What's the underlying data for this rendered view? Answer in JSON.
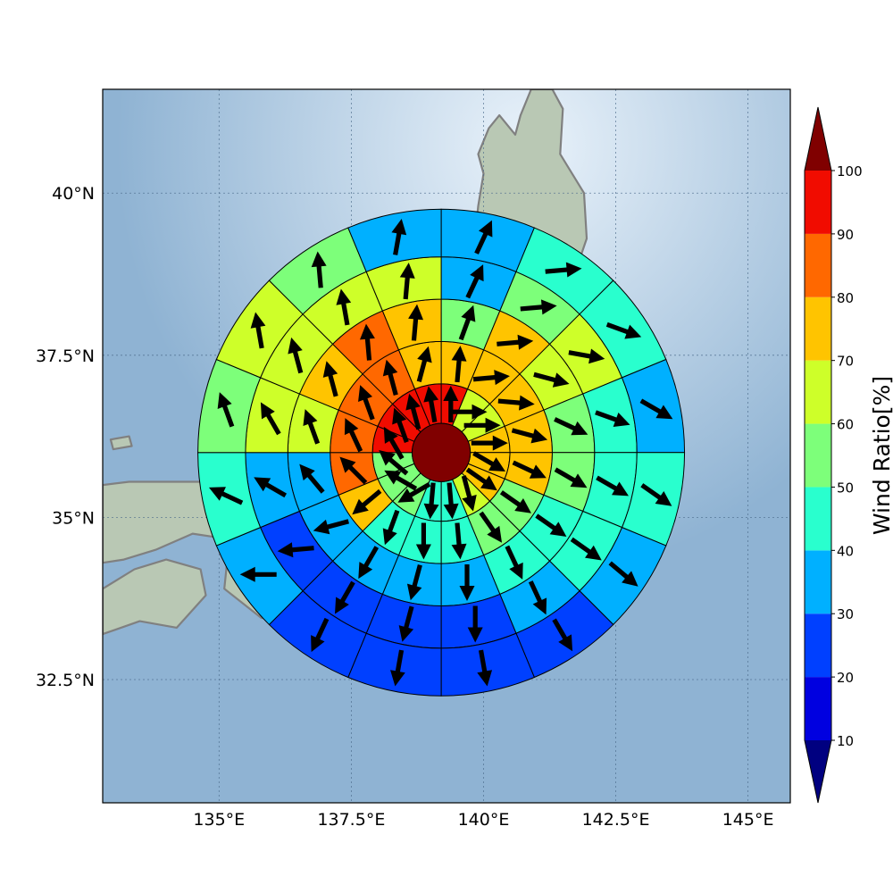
{
  "chart_data": {
    "type": "heatmap",
    "title": "",
    "map": {
      "lon_range": [
        132.8,
        145.8
      ],
      "lat_range": [
        30.6,
        41.6
      ],
      "xticks": [
        135,
        137.5,
        140,
        142.5,
        145
      ],
      "xtick_labels": [
        "135°E",
        "137.5°E",
        "140°E",
        "142.5°E",
        "145°E"
      ],
      "yticks": [
        32.5,
        35,
        37.5,
        40
      ],
      "ytick_labels": [
        "32.5°N",
        "35°N",
        "37.5°N",
        "40°N"
      ],
      "grid": true
    },
    "polar_grid": {
      "center": [
        139.2,
        36.0
      ],
      "ring_edges_deg": [
        0.55,
        1.3,
        2.1,
        2.9,
        3.7,
        4.6
      ],
      "sectors": 16,
      "sector_start_bearing": 0,
      "inner_circle_value": 100
    },
    "rings": [
      {
        "ring": 1,
        "values": [
          95,
          65,
          65,
          75,
          75,
          75,
          65,
          45,
          45,
          55,
          55,
          55,
          95,
          95,
          95,
          95
        ],
        "arrow_bearings": [
          0,
          90,
          90,
          90,
          120,
          125,
          165,
          175,
          185,
          240,
          300,
          310,
          330,
          340,
          345,
          350
        ]
      },
      {
        "ring": 2,
        "values": [
          75,
          75,
          75,
          75,
          75,
          55,
          55,
          45,
          45,
          45,
          75,
          85,
          85,
          85,
          85,
          75
        ],
        "arrow_bearings": [
          5,
          85,
          95,
          105,
          115,
          125,
          145,
          175,
          180,
          200,
          230,
          315,
          335,
          340,
          345,
          15
        ]
      },
      {
        "ring": 3,
        "values": [
          55,
          75,
          65,
          55,
          55,
          45,
          45,
          35,
          35,
          35,
          35,
          35,
          65,
          75,
          85,
          75
        ],
        "arrow_bearings": [
          20,
          85,
          105,
          115,
          120,
          125,
          155,
          180,
          195,
          210,
          255,
          320,
          340,
          345,
          355,
          5
        ]
      },
      {
        "ring": 4,
        "values": [
          35,
          55,
          65,
          45,
          45,
          45,
          35,
          25,
          25,
          25,
          25,
          35,
          65,
          65,
          65,
          65
        ],
        "arrow_bearings": [
          25,
          85,
          100,
          110,
          120,
          125,
          155,
          180,
          195,
          210,
          265,
          300,
          330,
          345,
          350,
          5
        ]
      },
      {
        "ring": 5,
        "values": [
          35,
          45,
          45,
          35,
          45,
          35,
          25,
          25,
          25,
          25,
          35,
          45,
          55,
          65,
          55,
          35
        ],
        "arrow_bearings": [
          25,
          85,
          110,
          120,
          125,
          130,
          150,
          170,
          190,
          205,
          270,
          295,
          340,
          350,
          355,
          10
        ]
      }
    ],
    "colorbar": {
      "label": "Wind Ratio[%]",
      "ticks": [
        10,
        20,
        30,
        40,
        50,
        60,
        70,
        80,
        90,
        100
      ],
      "bins": [
        {
          "from": 0,
          "to": 10,
          "color": "#000080"
        },
        {
          "from": 10,
          "to": 20,
          "color": "#0000e0"
        },
        {
          "from": 20,
          "to": 30,
          "color": "#0040ff"
        },
        {
          "from": 30,
          "to": 40,
          "color": "#00b0ff"
        },
        {
          "from": 40,
          "to": 50,
          "color": "#29ffce"
        },
        {
          "from": 50,
          "to": 60,
          "color": "#7dff7a"
        },
        {
          "from": 60,
          "to": 70,
          "color": "#ceff29"
        },
        {
          "from": 70,
          "to": 80,
          "color": "#ffc400"
        },
        {
          "from": 80,
          "to": 90,
          "color": "#ff6800"
        },
        {
          "from": 90,
          "to": 100,
          "color": "#f10c00"
        },
        {
          "from": 100,
          "to": 110,
          "color": "#800000"
        }
      ]
    },
    "colors": {
      "ocean": "#8fb3d3",
      "land": "#b9c8b4",
      "coastline": "#808080",
      "gridline": "#4a6a8a"
    }
  }
}
